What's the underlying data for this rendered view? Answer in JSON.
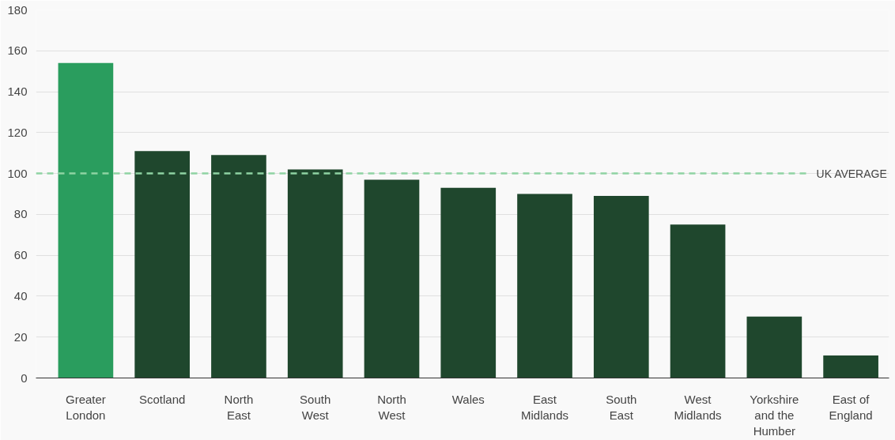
{
  "chart_data": {
    "type": "bar",
    "categories": [
      "Greater London",
      "Scotland",
      "North East",
      "South West",
      "North West",
      "Wales",
      "East Midlands",
      "South East",
      "West Midlands",
      "Yorkshire and the Humber",
      "East of England"
    ],
    "values": [
      154,
      111,
      109,
      102,
      97,
      93,
      90,
      89,
      75,
      30,
      11
    ],
    "colors": [
      "#2a9d5e",
      "#1f472d",
      "#1f472d",
      "#1f472d",
      "#1f472d",
      "#1f472d",
      "#1f472d",
      "#1f472d",
      "#1f472d",
      "#1f472d",
      "#1f472d"
    ],
    "ylim": [
      0,
      180
    ],
    "yticks": [
      0,
      20,
      40,
      60,
      80,
      100,
      120,
      140,
      160,
      180
    ],
    "grid": "y",
    "ref_lines": [
      {
        "axis": "y",
        "value": 100,
        "label": "UK AVERAGE",
        "color": "#8fd3a3",
        "line_style": "dashed"
      }
    ]
  }
}
